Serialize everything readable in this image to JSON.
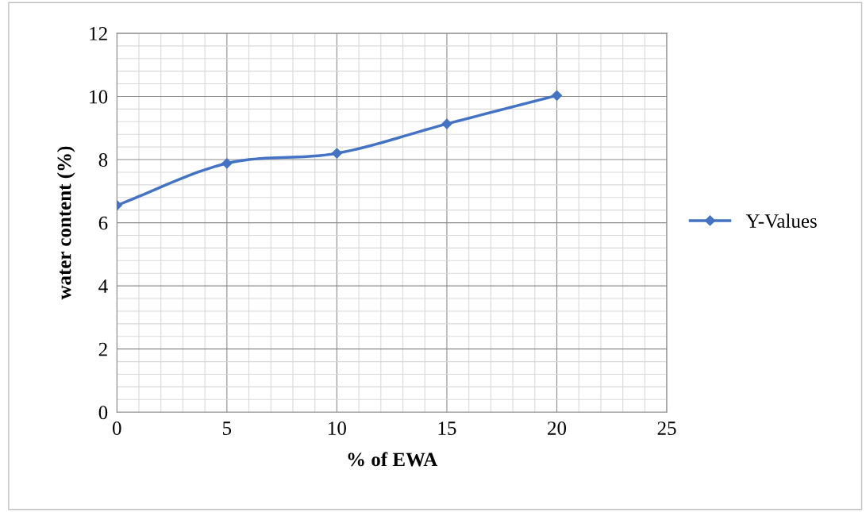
{
  "chart_data": {
    "type": "line",
    "xlabel": "% of EWA",
    "ylabel": "water content (%)",
    "x": [
      0,
      5,
      10,
      15,
      20
    ],
    "series": [
      {
        "name": "Y-Values",
        "color": "#4472c4",
        "values": [
          6.55,
          7.88,
          8.2,
          9.13,
          10.03
        ]
      }
    ],
    "xlim": [
      0,
      25
    ],
    "xticks": [
      0,
      5,
      10,
      15,
      20,
      25
    ],
    "ylim": [
      0,
      12
    ],
    "yticks": [
      0,
      2,
      4,
      6,
      8,
      10,
      12
    ],
    "grid": true,
    "legend": "right",
    "marker": "diamond",
    "line_style": "solid"
  }
}
